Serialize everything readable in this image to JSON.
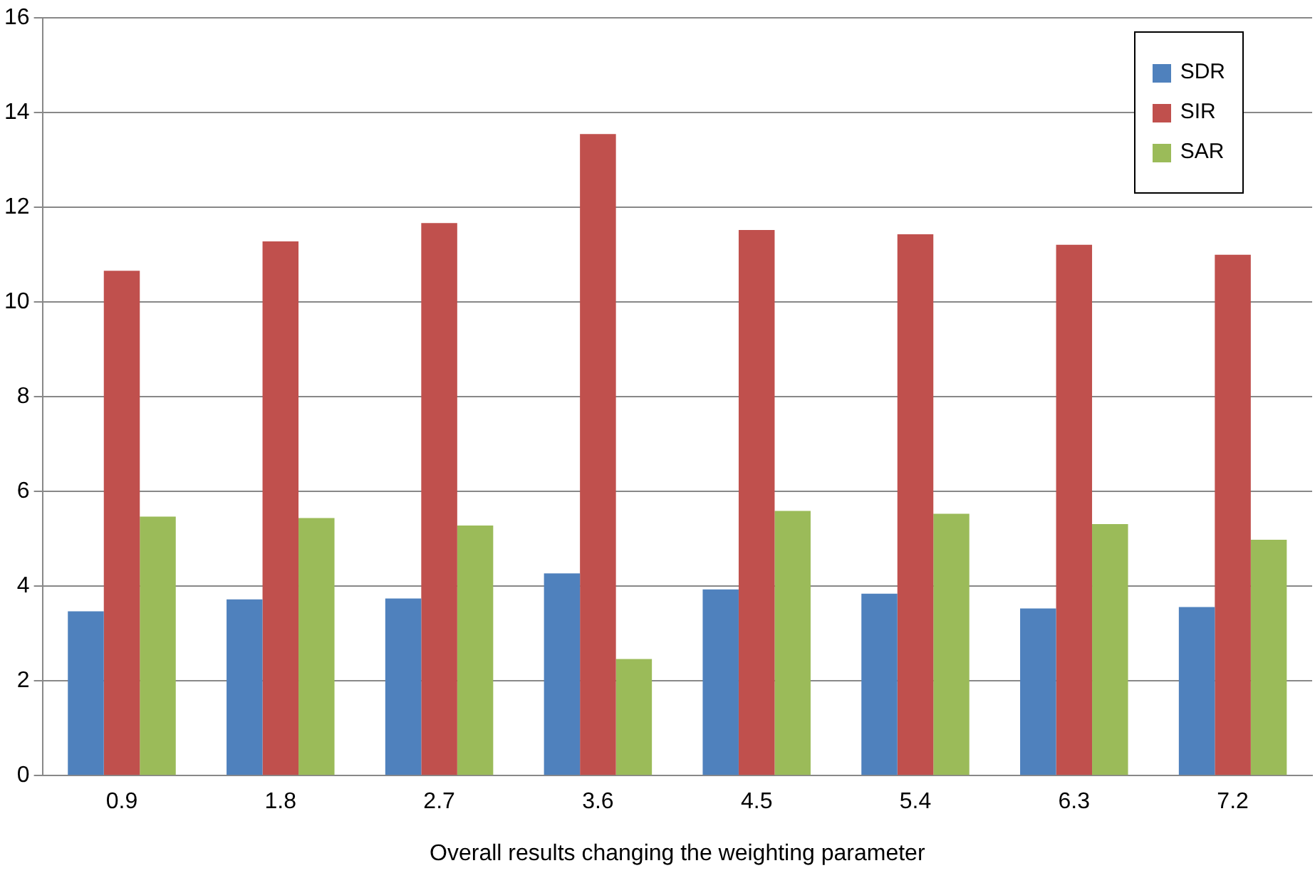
{
  "chart_data": {
    "type": "bar",
    "xlabel": "Overall results changing the weighting parameter",
    "categories": [
      "0.9",
      "1.8",
      "2.7",
      "3.6",
      "4.5",
      "5.4",
      "6.3",
      "7.2"
    ],
    "series": [
      {
        "name": "SDR",
        "color": "#4f81bd",
        "values": [
          3.47,
          3.72,
          3.74,
          4.27,
          3.93,
          3.84,
          3.53,
          3.56
        ]
      },
      {
        "name": "SIR",
        "color": "#c0504d",
        "values": [
          10.66,
          11.28,
          11.67,
          13.55,
          11.52,
          11.43,
          11.21,
          11.0
        ]
      },
      {
        "name": "SAR",
        "color": "#9bbb59",
        "values": [
          5.47,
          5.44,
          5.28,
          2.46,
          5.59,
          5.53,
          5.31,
          4.98
        ]
      }
    ],
    "ylim": [
      0,
      16
    ],
    "yticks": [
      0,
      2,
      4,
      6,
      8,
      10,
      12,
      14,
      16
    ],
    "grid": "y",
    "legend": "top right"
  }
}
